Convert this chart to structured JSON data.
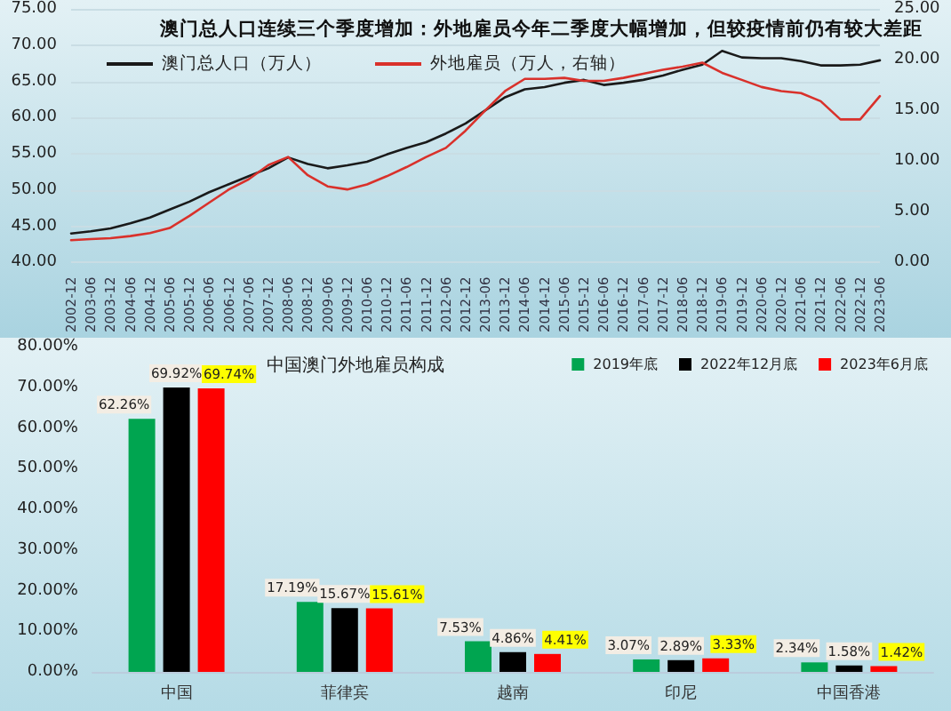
{
  "chart_data": [
    {
      "type": "line",
      "title": "澳门总人口连续三个季度增加：外地雇员今年二季度大幅增加，但较疫情前仍有较大差距",
      "categories": [
        "2002-12",
        "2003-06",
        "2003-12",
        "2004-06",
        "2004-12",
        "2005-06",
        "2005-12",
        "2006-06",
        "2006-12",
        "2007-06",
        "2007-12",
        "2008-06",
        "2008-12",
        "2009-06",
        "2009-12",
        "2010-06",
        "2010-12",
        "2011-06",
        "2011-12",
        "2012-06",
        "2012-12",
        "2013-06",
        "2013-12",
        "2014-06",
        "2014-12",
        "2015-06",
        "2015-12",
        "2016-06",
        "2016-12",
        "2017-06",
        "2017-12",
        "2018-06",
        "2018-12",
        "2019-06",
        "2019-12",
        "2020-06",
        "2020-12",
        "2021-06",
        "2021-12",
        "2022-06",
        "2022-12",
        "2023-06"
      ],
      "series": [
        {
          "name": "澳门总人口（万人）",
          "color": "#1a1a1a",
          "values": [
            44.0,
            44.3,
            44.7,
            45.4,
            46.2,
            47.3,
            48.4,
            49.7,
            50.8,
            51.9,
            53.0,
            54.5,
            53.6,
            53.0,
            53.4,
            53.9,
            54.9,
            55.8,
            56.6,
            57.8,
            59.2,
            61.0,
            62.8,
            63.9,
            64.2,
            64.8,
            65.2,
            64.5,
            64.8,
            65.2,
            65.8,
            66.6,
            67.3,
            69.2,
            68.3,
            68.2,
            68.2,
            67.8,
            67.2,
            67.2,
            67.3,
            67.9
          ]
        },
        {
          "name": "外地雇员（万人，右轴）",
          "color": "#d9312b",
          "axis": "y2",
          "values": [
            2.2,
            2.3,
            2.4,
            2.6,
            2.9,
            3.4,
            4.6,
            5.9,
            7.2,
            8.2,
            9.6,
            10.4,
            8.6,
            7.5,
            7.2,
            7.7,
            8.5,
            9.4,
            10.4,
            11.3,
            13.0,
            15.0,
            16.9,
            18.1,
            18.1,
            18.2,
            17.9,
            17.9,
            18.2,
            18.6,
            19.0,
            19.3,
            19.7,
            18.7,
            18.0,
            17.3,
            16.9,
            16.7,
            15.9,
            14.1,
            14.1,
            16.4
          ]
        }
      ],
      "ylim": [
        40,
        75
      ],
      "yticks": [
        {
          "value": 40,
          "label": "40.00"
        },
        {
          "value": 45,
          "label": "45.00"
        },
        {
          "value": 50,
          "label": "50.00"
        },
        {
          "value": 55,
          "label": "55.00"
        },
        {
          "value": 60,
          "label": "60.00"
        },
        {
          "value": 65,
          "label": "65.00"
        },
        {
          "value": 70,
          "label": "70.00"
        },
        {
          "value": 75,
          "label": "75.00"
        }
      ],
      "y2lim": [
        0,
        25
      ],
      "y2ticks": [
        {
          "value": 0,
          "label": "0.00"
        },
        {
          "value": 5,
          "label": "5.00"
        },
        {
          "value": 10,
          "label": "10.00"
        },
        {
          "value": 15,
          "label": "15.00"
        },
        {
          "value": 20,
          "label": "20.00"
        },
        {
          "value": 25,
          "label": "25.00"
        }
      ],
      "grid": "y",
      "legend": "top left",
      "marker": "none",
      "line_style": "solid"
    },
    {
      "type": "bar",
      "title": "中国澳门外地雇员构成",
      "categories": [
        "中国",
        "菲律宾",
        "越南",
        "印尼",
        "中国香港"
      ],
      "series": [
        {
          "name": "2019年底",
          "color": "#00a550",
          "values": [
            62.26,
            17.19,
            7.53,
            3.07,
            2.34
          ],
          "value_labels": [
            "62.26%",
            "17.19%",
            "7.53%",
            "3.07%",
            "2.34%"
          ]
        },
        {
          "name": "2022年12月底",
          "color": "#000000",
          "values": [
            69.92,
            15.67,
            4.86,
            2.89,
            1.58
          ],
          "value_labels": [
            "69.92%",
            "15.67%",
            "4.86%",
            "2.89%",
            "1.58%"
          ]
        },
        {
          "name": "2023年6月底",
          "color": "#ff0000",
          "values": [
            69.74,
            15.61,
            4.41,
            3.33,
            1.42
          ],
          "value_labels": [
            "69.74%",
            "15.61%",
            "4.41%",
            "3.33%",
            "1.42%"
          ]
        }
      ],
      "ylim": [
        0,
        80
      ],
      "yticks": [
        {
          "value": 0,
          "label": "0.00%"
        },
        {
          "value": 10,
          "label": "10.00%"
        },
        {
          "value": 20,
          "label": "20.00%"
        },
        {
          "value": 30,
          "label": "30.00%"
        },
        {
          "value": 40,
          "label": "40.00%"
        },
        {
          "value": 50,
          "label": "50.00%"
        },
        {
          "value": 60,
          "label": "60.00%"
        },
        {
          "value": 70,
          "label": "70.00%"
        },
        {
          "value": 80,
          "label": "80.00%"
        }
      ],
      "grid": false,
      "legend": "top right"
    }
  ]
}
